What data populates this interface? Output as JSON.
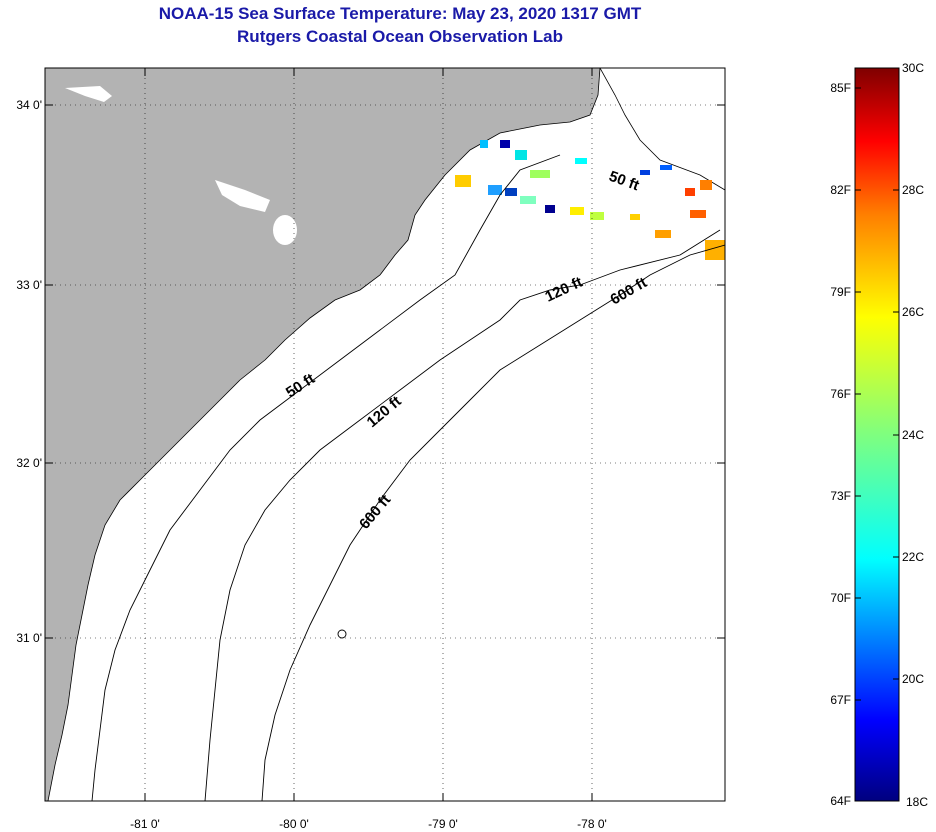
{
  "header": {
    "title": "NOAA-15 Sea Surface Temperature:  May 23, 2020 1317 GMT",
    "subtitle": "Rutgers Coastal Ocean Observation Lab"
  },
  "map": {
    "land_color": "#b3b3b3",
    "ocean_color": "#ffffff",
    "lat_labels": [
      "34 0'",
      "33 0'",
      "32 0'",
      "31 0'"
    ],
    "lon_labels": [
      "-81 0'",
      "-80 0'",
      "-79 0'",
      "-78 0'"
    ],
    "contours": [
      {
        "name": "50 ft",
        "label": "50 ft"
      },
      {
        "name": "120 ft",
        "label": "120 ft"
      },
      {
        "name": "600 ft",
        "label": "600 ft"
      }
    ],
    "contour_labels": [
      "50 ft",
      "50 ft",
      "120 ft",
      "120 ft",
      "600 ft",
      "600 ft"
    ]
  },
  "colorbar": {
    "fahrenheit_labels": [
      "85F",
      "82F",
      "79F",
      "76F",
      "73F",
      "70F",
      "67F",
      "64F"
    ],
    "celsius_labels": [
      "30C",
      "28C",
      "26C",
      "24C",
      "22C",
      "20C",
      "18C"
    ],
    "colors": [
      "#00007f",
      "#0000ff",
      "#007fff",
      "#00ffff",
      "#7fff7f",
      "#ffff00",
      "#ff7f00",
      "#ff0000",
      "#7f0000"
    ]
  }
}
